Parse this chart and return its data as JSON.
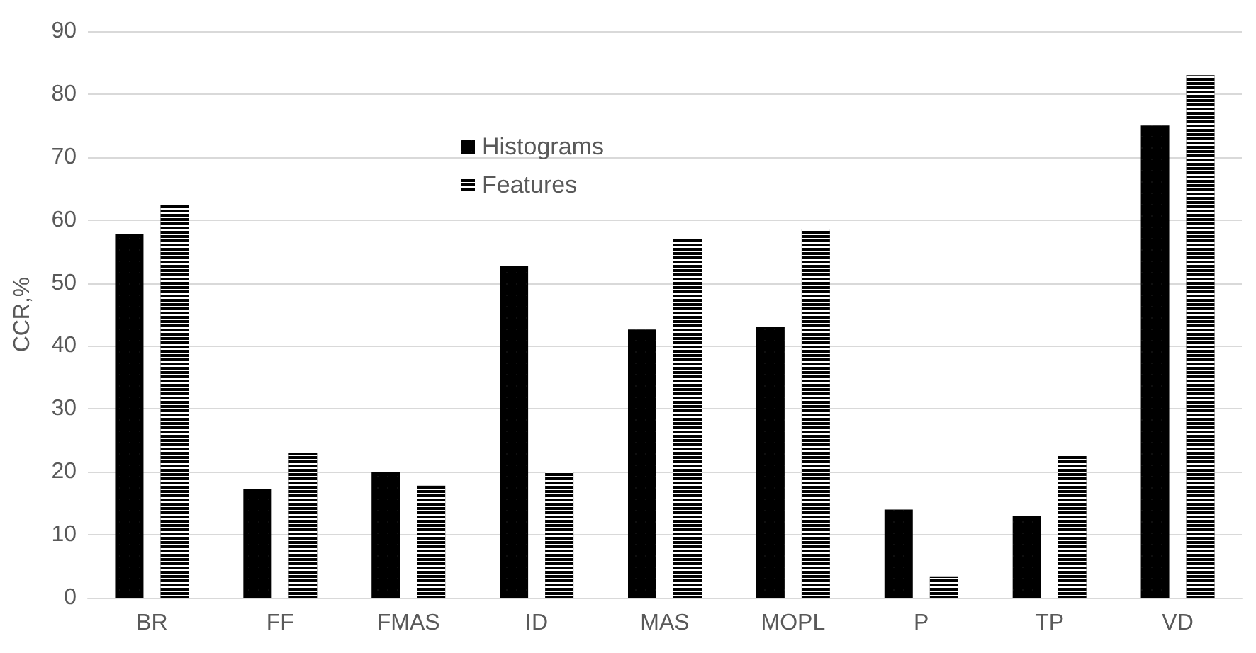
{
  "chart_data": {
    "type": "bar",
    "ylabel": "CCR,%",
    "categories": [
      "BR",
      "FF",
      "FMAS",
      "ID",
      "MAS",
      "MOPL",
      "P",
      "TP",
      "VD"
    ],
    "series": [
      {
        "name": "Histograms",
        "color": "#000000",
        "values": [
          57.7,
          17.3,
          20,
          52.7,
          42.6,
          43,
          14,
          13,
          75
        ]
      },
      {
        "name": "Features",
        "color": "#000000",
        "values": [
          62.4,
          23,
          17.8,
          20,
          57,
          58.5,
          3.4,
          22.5,
          83
        ]
      }
    ],
    "ylim": [
      0,
      90
    ],
    "yticks": [
      0,
      10,
      20,
      30,
      40,
      50,
      60,
      70,
      80,
      90
    ],
    "grid": "y",
    "legend": "top"
  }
}
